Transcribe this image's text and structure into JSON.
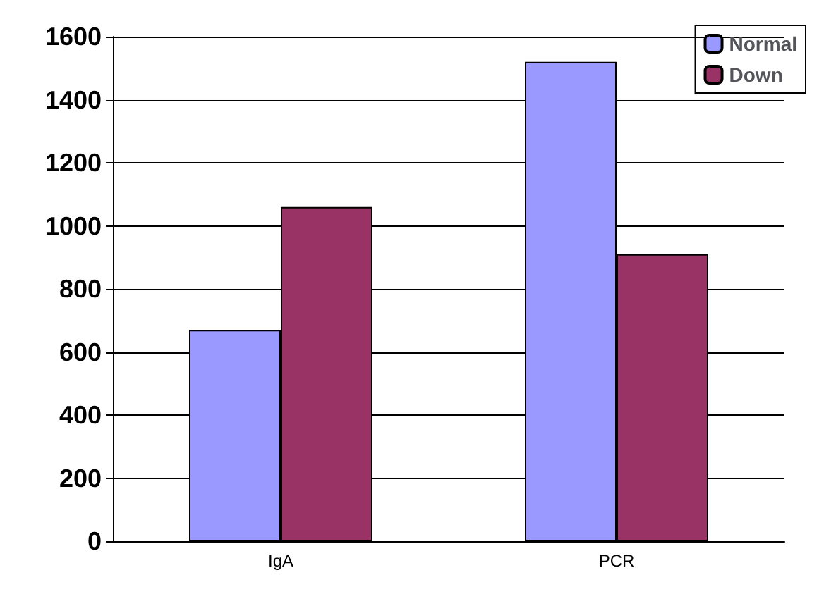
{
  "chart_data": {
    "type": "bar",
    "categories": [
      "IgA",
      "PCR"
    ],
    "series": [
      {
        "name": "Normal",
        "color": "#9999ff",
        "values": [
          670,
          1520
        ]
      },
      {
        "name": "Down",
        "color": "#993366",
        "values": [
          1060,
          910
        ]
      }
    ],
    "ylim": [
      0,
      1600
    ],
    "yticks": [
      0,
      200,
      400,
      600,
      800,
      1000,
      1200,
      1400,
      1600
    ],
    "grid": "y",
    "legend": "top right"
  }
}
